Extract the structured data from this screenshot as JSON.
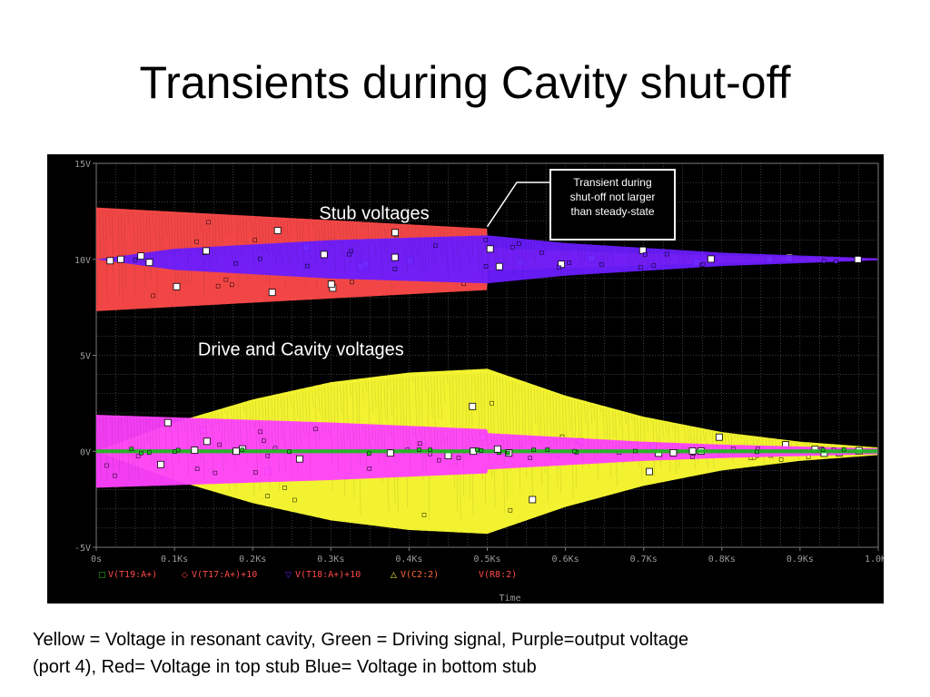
{
  "slide": {
    "title": "Transients during Cavity shut-off",
    "caption_line1": "Yellow = Voltage in resonant cavity, Green = Driving signal, Purple=output voltage",
    "caption_line2": "(port 4), Red= Voltage in top stub Blue= Voltage in bottom stub"
  },
  "colors": {
    "background": "#000000",
    "grid": "#7a7a7a",
    "axis_text": "#9a9a9a",
    "red": "#ff4a4a",
    "blue": "#6a1cff",
    "yellow": "#ffff33",
    "magenta": "#ff40ff",
    "green": "#22bb22"
  },
  "chart_data": {
    "type": "line",
    "xlabel": "Time",
    "ylabel": "",
    "x_unit": "Ks",
    "xlim": [
      0,
      1.0
    ],
    "ylim": [
      -5,
      15
    ],
    "x_ticks": [
      {
        "v": 0,
        "label": "0s"
      },
      {
        "v": 0.1,
        "label": "0.1Ks"
      },
      {
        "v": 0.2,
        "label": "0.2Ks"
      },
      {
        "v": 0.3,
        "label": "0.3Ks"
      },
      {
        "v": 0.4,
        "label": "0.4Ks"
      },
      {
        "v": 0.5,
        "label": "0.5Ks"
      },
      {
        "v": 0.6,
        "label": "0.6Ks"
      },
      {
        "v": 0.7,
        "label": "0.7Ks"
      },
      {
        "v": 0.8,
        "label": "0.8Ks"
      },
      {
        "v": 0.9,
        "label": "0.9Ks"
      },
      {
        "v": 1.0,
        "label": "1.0Ks"
      }
    ],
    "y_ticks": [
      {
        "v": 15,
        "label": "15V"
      },
      {
        "v": 10,
        "label": "10V"
      },
      {
        "v": 5,
        "label": "5V"
      },
      {
        "v": 0,
        "label": "0V"
      },
      {
        "v": -5,
        "label": "-5V"
      }
    ],
    "grid": true,
    "legend_position": "bottom",
    "series": [
      {
        "name": "V(T19:A+)",
        "color": "#22bb22",
        "center": 0,
        "envelope": [
          {
            "x": 0,
            "amp": 0.1
          },
          {
            "x": 1.0,
            "amp": 0.1
          }
        ]
      },
      {
        "name": "V(T17:A+)+10",
        "color": "#ff4a4a",
        "center": 10,
        "envelope": [
          {
            "x": 0,
            "amp": 2.7
          },
          {
            "x": 0.5,
            "amp": 1.6
          },
          {
            "x": 0.5,
            "amp": 0.6
          },
          {
            "x": 0.6,
            "amp": 0.45
          },
          {
            "x": 0.8,
            "amp": 0.2
          },
          {
            "x": 1.0,
            "amp": 0.05
          }
        ]
      },
      {
        "name": "V(T18:A+)+10",
        "color": "#6a1cff",
        "center": 10,
        "envelope": [
          {
            "x": 0,
            "amp": 0.0
          },
          {
            "x": 0.1,
            "amp": 0.55
          },
          {
            "x": 0.3,
            "amp": 1.0
          },
          {
            "x": 0.5,
            "amp": 1.25
          },
          {
            "x": 0.6,
            "amp": 0.85
          },
          {
            "x": 0.8,
            "amp": 0.35
          },
          {
            "x": 1.0,
            "amp": 0.05
          }
        ]
      },
      {
        "name": "V(C2:2)",
        "color": "#ffff33",
        "center": 0,
        "envelope": [
          {
            "x": 0,
            "amp": 0.0
          },
          {
            "x": 0.1,
            "amp": 1.5
          },
          {
            "x": 0.2,
            "amp": 2.7
          },
          {
            "x": 0.3,
            "amp": 3.6
          },
          {
            "x": 0.4,
            "amp": 4.1
          },
          {
            "x": 0.5,
            "amp": 4.3
          },
          {
            "x": 0.6,
            "amp": 2.9
          },
          {
            "x": 0.7,
            "amp": 1.8
          },
          {
            "x": 0.8,
            "amp": 1.0
          },
          {
            "x": 0.9,
            "amp": 0.5
          },
          {
            "x": 1.0,
            "amp": 0.2
          }
        ]
      },
      {
        "name": "V(R8:2)",
        "color": "#ff40ff",
        "center": 0,
        "envelope": [
          {
            "x": 0,
            "amp": 1.9
          },
          {
            "x": 0.3,
            "amp": 1.5
          },
          {
            "x": 0.5,
            "amp": 1.15
          },
          {
            "x": 0.5,
            "amp": 0.95
          },
          {
            "x": 0.7,
            "amp": 0.5
          },
          {
            "x": 0.8,
            "amp": 0.35
          },
          {
            "x": 1.0,
            "amp": 0.15
          }
        ]
      }
    ],
    "annotations": [
      {
        "text": "Stub voltages",
        "x": 0.285,
        "y": 12.1
      },
      {
        "text": "Drive and Cavity voltages",
        "x": 0.13,
        "y": 5.0
      }
    ],
    "callout": {
      "lines": [
        "Transient during",
        "shut-off not larger",
        "than steady-state"
      ],
      "target": {
        "x": 0.5,
        "y": 11.7
      }
    }
  }
}
